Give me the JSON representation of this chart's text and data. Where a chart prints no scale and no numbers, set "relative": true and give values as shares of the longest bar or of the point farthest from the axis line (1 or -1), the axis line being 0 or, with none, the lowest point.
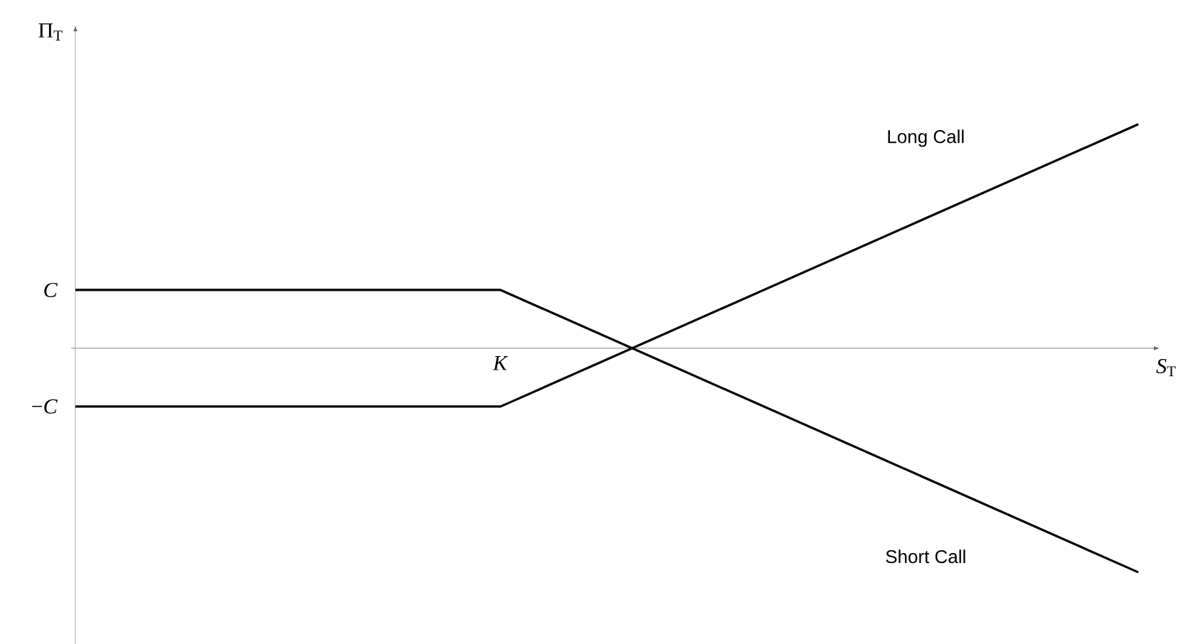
{
  "chart_data": {
    "type": "line",
    "relative": true,
    "xlabel": "*S*$_{T}$",
    "ylabel": "Π$_{T}$",
    "categories": [
      null,
      null,
      null,
      null,
      null,
      null
    ],
    "annotations": [
      "*K*",
      "*C*",
      "−*C*"
    ],
    "marker": "none",
    "series": [
      {
        "name": "Long Call",
        "color": "#000000",
        "values": [
          -0.26,
          -0.26,
          -0.26,
          0.16,
          0.58,
          1
        ]
      },
      {
        "name": "Short Call",
        "color": "#000000",
        "values": [
          0.26,
          0.26,
          0.26,
          -0.16,
          -0.58,
          -1
        ]
      }
    ]
  }
}
